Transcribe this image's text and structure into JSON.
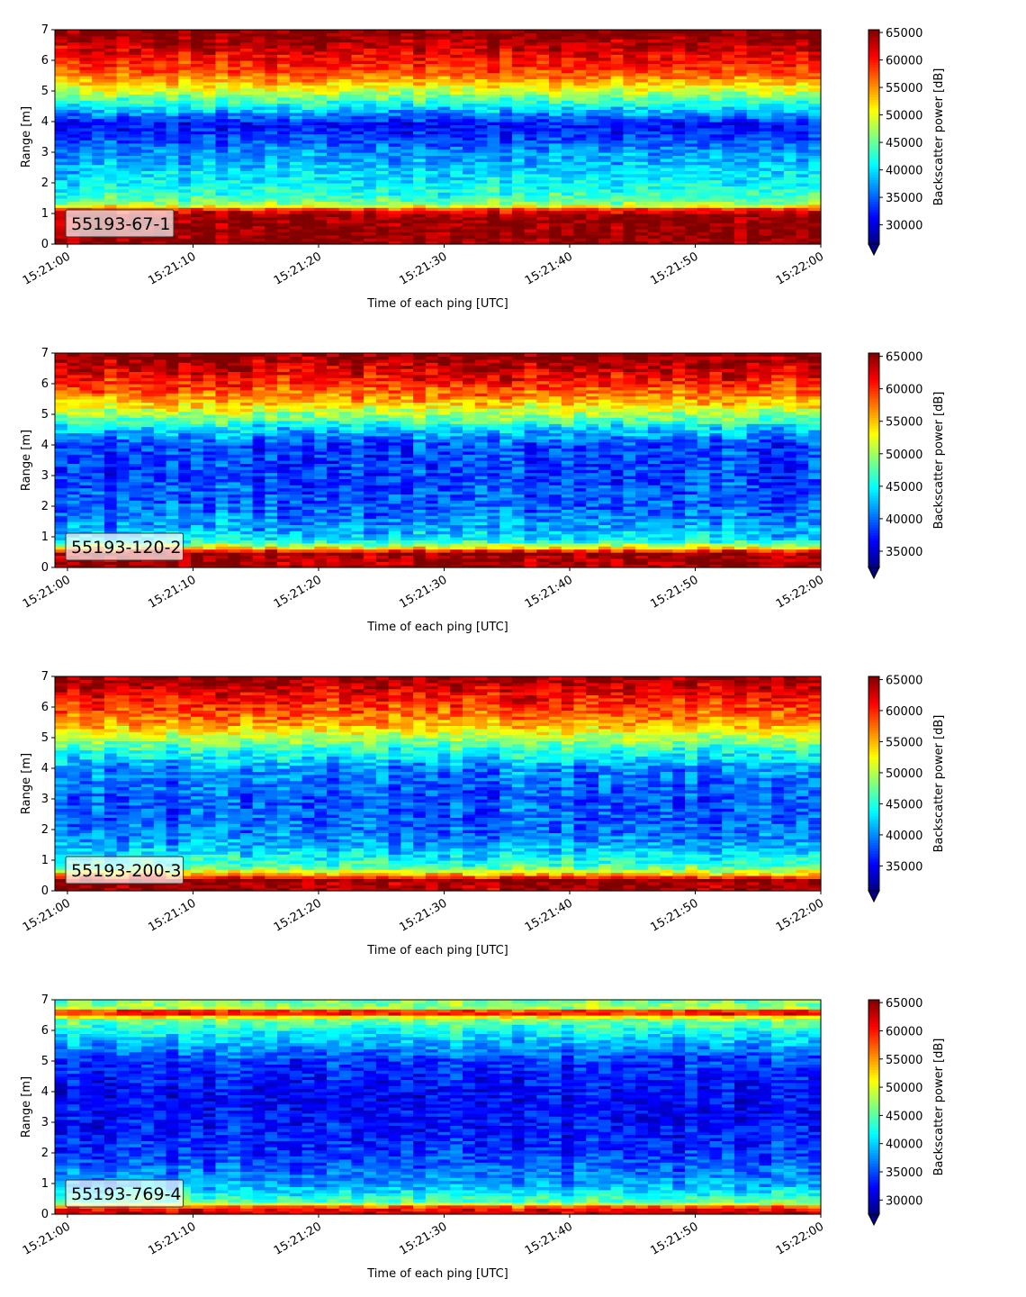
{
  "chart_data": [
    {
      "type": "heatmap",
      "label": "55193-67-1",
      "xlabel": "Time of each ping [UTC]",
      "ylabel": "Range [m]",
      "xticks": [
        "15:21:00",
        "15:21:10",
        "15:21:20",
        "15:21:30",
        "15:21:40",
        "15:21:50",
        "15:22:00"
      ],
      "xlim": [
        "15:20:59",
        "15:22:00"
      ],
      "yticks": [
        0,
        1,
        2,
        3,
        4,
        5,
        6,
        7
      ],
      "ylim": [
        0,
        7
      ],
      "colorbar": {
        "label": "Backscatter power [dB]",
        "ticks": [
          30000,
          35000,
          40000,
          45000,
          50000,
          55000,
          60000,
          65000
        ],
        "vmin": 26500,
        "vmax": 65500,
        "extend": "min",
        "colormap": "jet"
      },
      "profile": [
        {
          "range": 0.1,
          "value": 64500
        },
        {
          "range": 0.35,
          "value": 65000
        },
        {
          "range": 1.0,
          "value": 64000
        },
        {
          "range": 1.15,
          "value": 58000
        },
        {
          "range": 1.3,
          "value": 47000
        },
        {
          "range": 1.6,
          "value": 43000
        },
        {
          "range": 2.0,
          "value": 41000
        },
        {
          "range": 2.6,
          "value": 38500
        },
        {
          "range": 3.0,
          "value": 37000
        },
        {
          "range": 3.5,
          "value": 33500
        },
        {
          "range": 3.9,
          "value": 31500
        },
        {
          "range": 4.4,
          "value": 39000
        },
        {
          "range": 4.9,
          "value": 47000
        },
        {
          "range": 5.2,
          "value": 52000
        },
        {
          "range": 5.6,
          "value": 57500
        },
        {
          "range": 6.0,
          "value": 60000
        },
        {
          "range": 6.5,
          "value": 63000
        },
        {
          "range": 6.8,
          "value": 65000
        },
        {
          "range": 7.0,
          "value": 65500
        }
      ],
      "noise": 3500
    },
    {
      "type": "heatmap",
      "label": "55193-120-2",
      "xlabel": "Time of each ping [UTC]",
      "ylabel": "Range [m]",
      "xticks": [
        "15:21:00",
        "15:21:10",
        "15:21:20",
        "15:21:30",
        "15:21:40",
        "15:21:50",
        "15:22:00"
      ],
      "xlim": [
        "15:20:59",
        "15:22:00"
      ],
      "yticks": [
        0,
        1,
        2,
        3,
        4,
        5,
        6,
        7
      ],
      "ylim": [
        0,
        7
      ],
      "colorbar": {
        "label": "Backscatter power [dB]",
        "ticks": [
          35000,
          40000,
          45000,
          50000,
          55000,
          60000,
          65000
        ],
        "vmin": 32500,
        "vmax": 65500,
        "extend": "min",
        "colormap": "jet"
      },
      "profile": [
        {
          "range": 0.1,
          "value": 64500
        },
        {
          "range": 0.5,
          "value": 64000
        },
        {
          "range": 0.65,
          "value": 54000
        },
        {
          "range": 0.9,
          "value": 44000
        },
        {
          "range": 1.5,
          "value": 41000
        },
        {
          "range": 2.0,
          "value": 39500
        },
        {
          "range": 3.0,
          "value": 38500
        },
        {
          "range": 4.0,
          "value": 38500
        },
        {
          "range": 4.6,
          "value": 44000
        },
        {
          "range": 5.0,
          "value": 50000
        },
        {
          "range": 5.5,
          "value": 56000
        },
        {
          "range": 6.0,
          "value": 60000
        },
        {
          "range": 6.5,
          "value": 63000
        },
        {
          "range": 7.0,
          "value": 65500
        }
      ],
      "noise": 3500
    },
    {
      "type": "heatmap",
      "label": "55193-200-3",
      "xlabel": "Time of each ping [UTC]",
      "ylabel": "Range [m]",
      "xticks": [
        "15:21:00",
        "15:21:10",
        "15:21:20",
        "15:21:30",
        "15:21:40",
        "15:21:50",
        "15:22:00"
      ],
      "xlim": [
        "15:20:59",
        "15:22:00"
      ],
      "yticks": [
        0,
        1,
        2,
        3,
        4,
        5,
        6,
        7
      ],
      "ylim": [
        0,
        7
      ],
      "colorbar": {
        "label": "Backscatter power [dB]",
        "ticks": [
          35000,
          40000,
          45000,
          50000,
          55000,
          60000,
          65000
        ],
        "vmin": 31000,
        "vmax": 65500,
        "extend": "min",
        "colormap": "jet"
      },
      "profile": [
        {
          "range": 0.1,
          "value": 64000
        },
        {
          "range": 0.35,
          "value": 65000
        },
        {
          "range": 0.55,
          "value": 55000
        },
        {
          "range": 0.8,
          "value": 46000
        },
        {
          "range": 1.5,
          "value": 41000
        },
        {
          "range": 2.0,
          "value": 39000
        },
        {
          "range": 3.0,
          "value": 38000
        },
        {
          "range": 4.0,
          "value": 40000
        },
        {
          "range": 4.6,
          "value": 45000
        },
        {
          "range": 5.0,
          "value": 50000
        },
        {
          "range": 5.5,
          "value": 56000
        },
        {
          "range": 6.0,
          "value": 59000
        },
        {
          "range": 6.5,
          "value": 62000
        },
        {
          "range": 7.0,
          "value": 65000
        }
      ],
      "noise": 3500
    },
    {
      "type": "heatmap",
      "label": "55193-769-4",
      "xlabel": "Time of each ping [UTC]",
      "ylabel": "Range [m]",
      "xticks": [
        "15:21:00",
        "15:21:10",
        "15:21:20",
        "15:21:30",
        "15:21:40",
        "15:21:50",
        "15:22:00"
      ],
      "xlim": [
        "15:20:59",
        "15:22:00"
      ],
      "yticks": [
        0,
        1,
        2,
        3,
        4,
        5,
        6,
        7
      ],
      "ylim": [
        0,
        7
      ],
      "colorbar": {
        "label": "Backscatter power [dB]",
        "ticks": [
          30000,
          35000,
          40000,
          45000,
          50000,
          55000,
          60000,
          65000
        ],
        "vmin": 27500,
        "vmax": 65500,
        "extend": "min",
        "colormap": "jet"
      },
      "profile": [
        {
          "range": 0.1,
          "value": 63000
        },
        {
          "range": 0.25,
          "value": 57000
        },
        {
          "range": 0.4,
          "value": 45000
        },
        {
          "range": 1.0,
          "value": 38000
        },
        {
          "range": 2.0,
          "value": 34000
        },
        {
          "range": 3.0,
          "value": 32500
        },
        {
          "range": 4.0,
          "value": 32000
        },
        {
          "range": 5.0,
          "value": 34000
        },
        {
          "range": 5.5,
          "value": 38000
        },
        {
          "range": 6.0,
          "value": 42000
        },
        {
          "range": 6.4,
          "value": 47000
        },
        {
          "range": 6.6,
          "value": 64000
        },
        {
          "range": 6.75,
          "value": 48000
        },
        {
          "range": 7.0,
          "value": 45000
        }
      ],
      "noise": 3500
    }
  ]
}
